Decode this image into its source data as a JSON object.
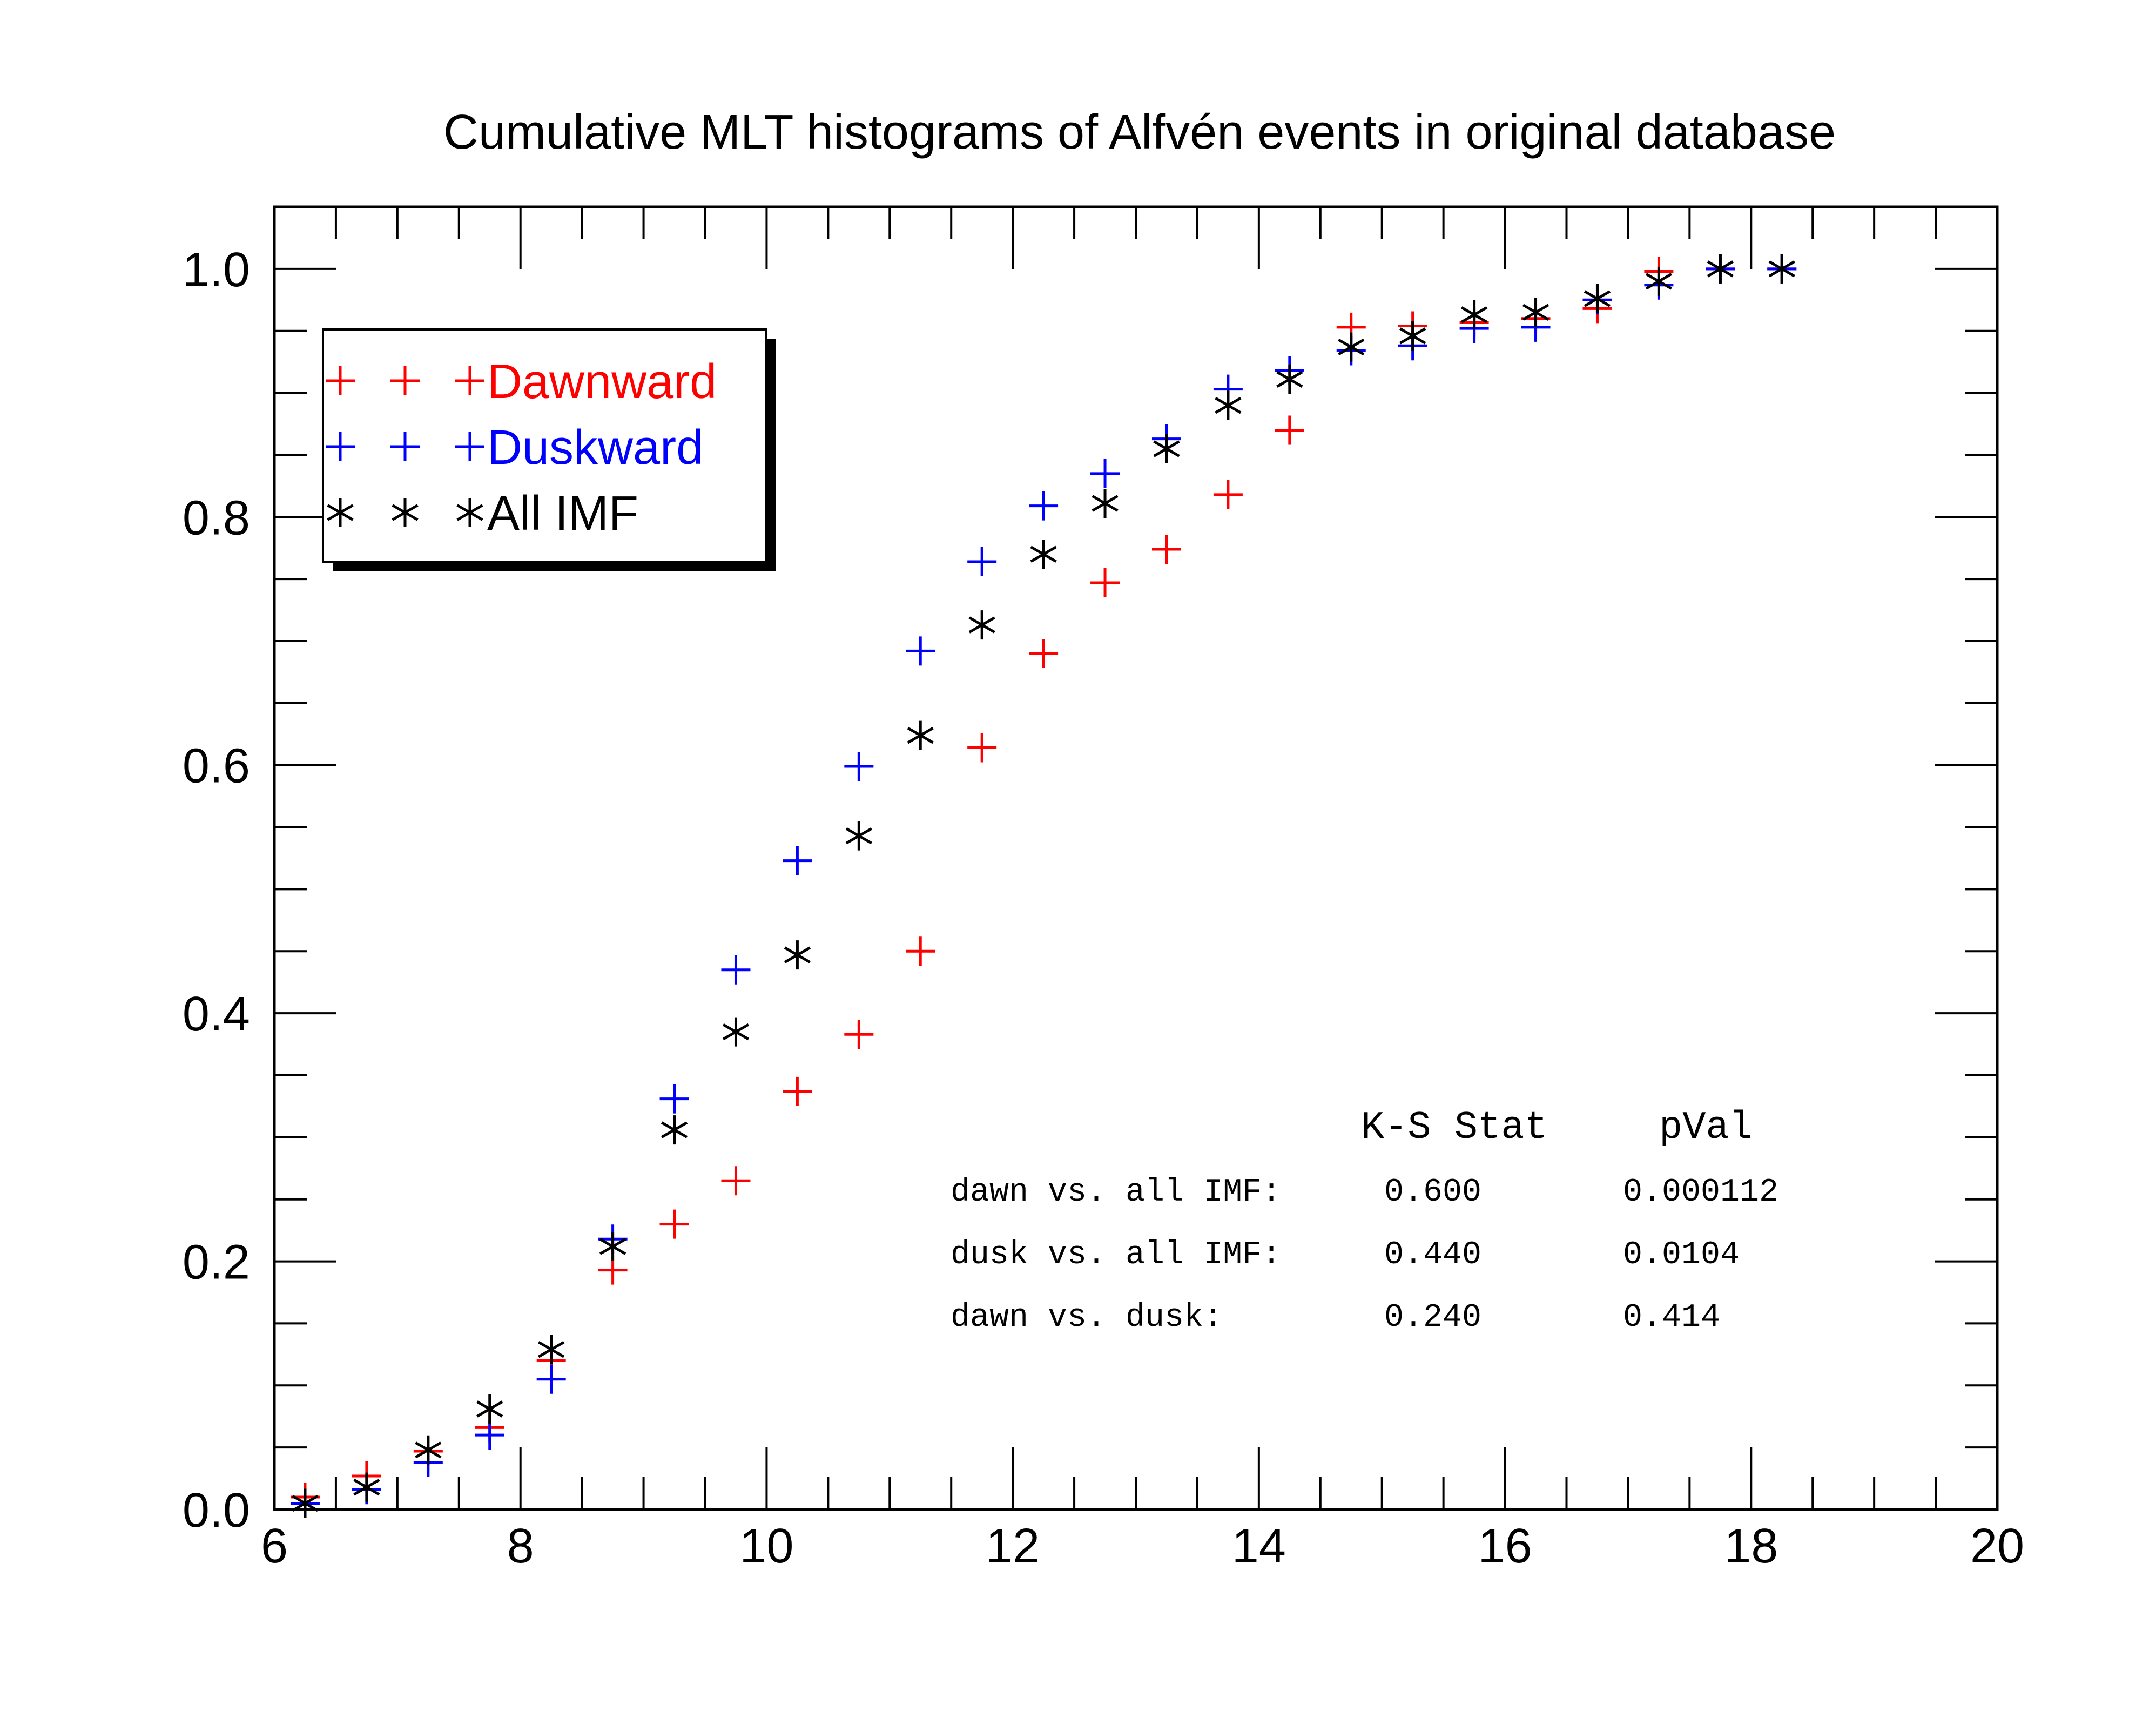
{
  "chart_data": {
    "type": "scatter",
    "title": "Cumulative MLT histograms of Alfvén events in original database",
    "xlabel": "",
    "ylabel": "",
    "xlim": [
      6,
      20
    ],
    "ylim": [
      0,
      1.05
    ],
    "x_ticks": [
      "6",
      "8",
      "10",
      "12",
      "14",
      "16",
      "18",
      "20"
    ],
    "y_ticks": [
      "0.0",
      "0.2",
      "0.4",
      "0.6",
      "0.8",
      "1.0"
    ],
    "legend_position": "top-left",
    "x": [
      6.25,
      6.75,
      7.25,
      7.75,
      8.25,
      8.75,
      9.25,
      9.75,
      10.25,
      10.75,
      11.25,
      11.75,
      12.25,
      12.75,
      13.25,
      13.75,
      14.25,
      14.75,
      15.25,
      15.75,
      16.25,
      16.75,
      17.25,
      17.75,
      18.25
    ],
    "series": [
      {
        "name": "Dawnward",
        "color": "#ff0000",
        "marker": "plus",
        "values": [
          0.01,
          0.027,
          0.047,
          0.066,
          0.12,
          0.193,
          0.23,
          0.265,
          0.337,
          0.383,
          0.45,
          0.614,
          0.69,
          0.747,
          0.774,
          0.818,
          0.87,
          0.953,
          0.954,
          0.957,
          0.96,
          0.968,
          0.998,
          1.0,
          1.0
        ]
      },
      {
        "name": "Duskward",
        "color": "#0000ff",
        "marker": "plus",
        "values": [
          0.005,
          0.016,
          0.038,
          0.06,
          0.105,
          0.218,
          0.331,
          0.435,
          0.523,
          0.599,
          0.692,
          0.764,
          0.809,
          0.835,
          0.863,
          0.903,
          0.918,
          0.934,
          0.938,
          0.952,
          0.953,
          0.975,
          0.987,
          1.0,
          1.0
        ]
      },
      {
        "name": "All IMF",
        "color": "#000000",
        "marker": "asterisk",
        "values": [
          0.005,
          0.018,
          0.048,
          0.081,
          0.129,
          0.212,
          0.306,
          0.385,
          0.447,
          0.543,
          0.624,
          0.713,
          0.77,
          0.811,
          0.855,
          0.89,
          0.911,
          0.937,
          0.946,
          0.963,
          0.965,
          0.976,
          0.99,
          1.0,
          1.0
        ]
      }
    ],
    "annotation_table": {
      "headers": [
        "K-S Stat",
        "pVal"
      ],
      "rows": [
        {
          "label": "dawn vs. all IMF:",
          "stat": "0.600",
          "pval": "0.000112"
        },
        {
          "label": "dusk vs. all IMF:",
          "stat": "0.440",
          "pval": "0.0104"
        },
        {
          "label": "dawn vs. dusk:",
          "stat": "0.240",
          "pval": "0.414"
        }
      ]
    }
  }
}
